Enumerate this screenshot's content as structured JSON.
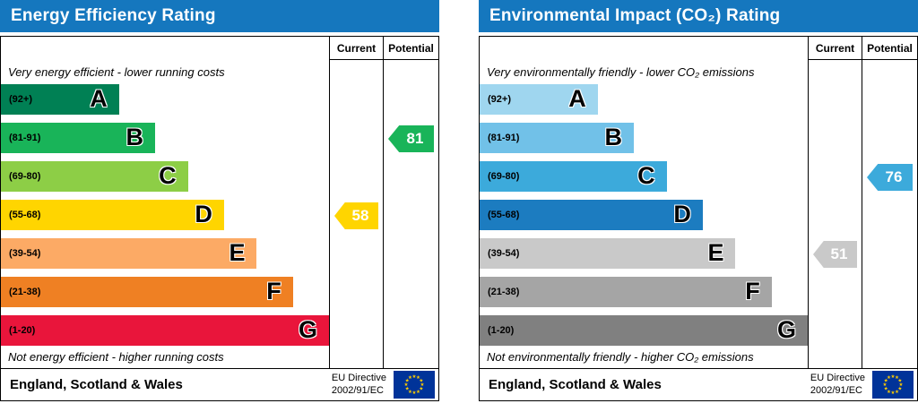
{
  "colors": {
    "header_bg": "#1577be",
    "header_text": "#ffffff"
  },
  "chart_data": [
    {
      "type": "bar",
      "title": "Energy Efficiency Rating",
      "column_headers": [
        "Current",
        "Potential"
      ],
      "top_note": "Very energy efficient - lower running costs",
      "bottom_note": "Not energy efficient - higher running costs",
      "categories": [
        "A",
        "B",
        "C",
        "D",
        "E",
        "F",
        "G"
      ],
      "band_ranges": [
        "(92+)",
        "(81-91)",
        "(69-80)",
        "(55-68)",
        "(39-54)",
        "(21-38)",
        "(1-20)"
      ],
      "bands": [
        {
          "letter": "A",
          "range": "(92+)",
          "color": "#008054",
          "width_pct": 36
        },
        {
          "letter": "B",
          "range": "(81-91)",
          "color": "#19b459",
          "width_pct": 47
        },
        {
          "letter": "C",
          "range": "(69-80)",
          "color": "#8dce46",
          "width_pct": 57
        },
        {
          "letter": "D",
          "range": "(55-68)",
          "color": "#ffd500",
          "width_pct": 68
        },
        {
          "letter": "E",
          "range": "(39-54)",
          "color": "#fcaa65",
          "width_pct": 78
        },
        {
          "letter": "F",
          "range": "(21-38)",
          "color": "#ef8023",
          "width_pct": 89
        },
        {
          "letter": "G",
          "range": "(1-20)",
          "color": "#e9153b",
          "width_pct": 100
        }
      ],
      "current": {
        "value": 58,
        "band": "D",
        "band_index": 3,
        "color": "#ffd500"
      },
      "potential": {
        "value": 81,
        "band": "B",
        "band_index": 1,
        "color": "#19b459"
      },
      "footer": {
        "region": "England, Scotland & Wales",
        "directive_line1": "EU Directive",
        "directive_line2": "2002/91/EC",
        "flag": "eu-flag"
      }
    },
    {
      "type": "bar",
      "title": "Environmental Impact (CO₂) Rating",
      "column_headers": [
        "Current",
        "Potential"
      ],
      "top_note": "Very environmentally friendly - lower CO₂ emissions",
      "bottom_note": "Not environmentally friendly - higher CO₂ emissions",
      "categories": [
        "A",
        "B",
        "C",
        "D",
        "E",
        "F",
        "G"
      ],
      "band_ranges": [
        "(92+)",
        "(81-91)",
        "(69-80)",
        "(55-68)",
        "(39-54)",
        "(21-38)",
        "(1-20)"
      ],
      "bands": [
        {
          "letter": "A",
          "range": "(92+)",
          "color": "#9fd6ef",
          "width_pct": 36
        },
        {
          "letter": "B",
          "range": "(81-91)",
          "color": "#71c1e8",
          "width_pct": 47
        },
        {
          "letter": "C",
          "range": "(69-80)",
          "color": "#3caadb",
          "width_pct": 57
        },
        {
          "letter": "D",
          "range": "(55-68)",
          "color": "#1c7cc0",
          "width_pct": 68
        },
        {
          "letter": "E",
          "range": "(39-54)",
          "color": "#c9c9c9",
          "width_pct": 78
        },
        {
          "letter": "F",
          "range": "(21-38)",
          "color": "#a5a5a5",
          "width_pct": 89
        },
        {
          "letter": "G",
          "range": "(1-20)",
          "color": "#808080",
          "width_pct": 100
        }
      ],
      "current": {
        "value": 51,
        "band": "E",
        "band_index": 4,
        "color": "#c9c9c9"
      },
      "potential": {
        "value": 76,
        "band": "C",
        "band_index": 2,
        "color": "#3caadb"
      },
      "footer": {
        "region": "England, Scotland & Wales",
        "directive_line1": "EU Directive",
        "directive_line2": "2002/91/EC",
        "flag": "eu-flag"
      }
    }
  ]
}
